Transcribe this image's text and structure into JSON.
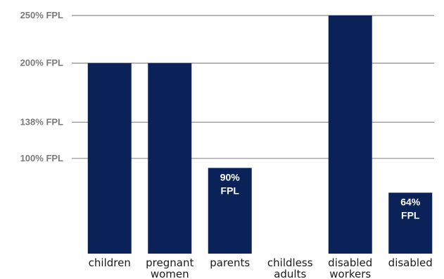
{
  "chart_data": {
    "type": "bar",
    "categories": [
      [
        "children"
      ],
      [
        "pregnant",
        "women"
      ],
      [
        "parents"
      ],
      [
        "childless",
        "adults"
      ],
      [
        "disabled",
        "workers"
      ],
      [
        "disabled"
      ]
    ],
    "values": [
      200,
      200,
      90,
      0,
      250,
      64
    ],
    "data_labels": [
      null,
      null,
      [
        "90%",
        "FPL"
      ],
      null,
      null,
      [
        "64%",
        "FPL"
      ]
    ],
    "y_ticks": [
      {
        "value": 100,
        "label": "100% FPL"
      },
      {
        "value": 138,
        "label": "138% FPL"
      },
      {
        "value": 200,
        "label": "200% FPL"
      },
      {
        "value": 250,
        "label": "250% FPL"
      }
    ],
    "ylim": [
      0,
      250
    ],
    "grid": true,
    "bar_color": "#0b2259",
    "title": "",
    "xlabel": "",
    "ylabel": ""
  }
}
